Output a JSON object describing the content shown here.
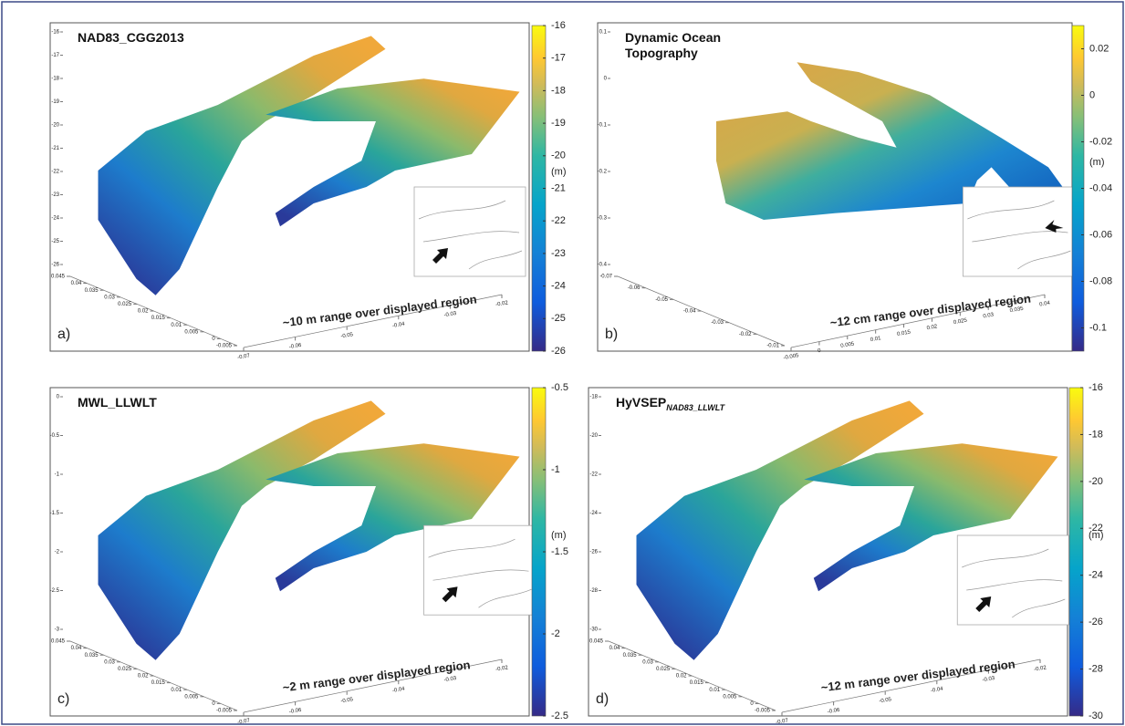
{
  "chart_data": [
    {
      "type": "surface",
      "title": "NAD83_CGG2013",
      "panel": "a)",
      "annotation": "~10 m range over displayed region",
      "colorbar_label": "(m)",
      "clim": [
        -26,
        -16
      ],
      "cticks": [
        -16,
        -17,
        -18,
        -19,
        -20,
        -21,
        -22,
        -23,
        -24,
        -25,
        -26
      ],
      "zticks": [
        -16,
        -17,
        -18,
        -19,
        -20,
        -21,
        -22,
        -23,
        -24,
        -25,
        -26
      ],
      "yticks": [
        0.045,
        0.04,
        0.035,
        0.03,
        0.025,
        0.02,
        0.015,
        0.01,
        0.005,
        0,
        -0.005
      ],
      "xticks": [
        -0.07,
        -0.06,
        -0.05,
        -0.04,
        -0.03,
        -0.02
      ]
    },
    {
      "type": "surface",
      "title": "Dynamic Ocean Topography",
      "panel": "b)",
      "annotation": "~12 cm range over displayed region",
      "colorbar_label": "(m)",
      "clim": [
        -0.11,
        0.03
      ],
      "cticks": [
        0.02,
        0,
        -0.02,
        -0.04,
        -0.06,
        -0.08,
        -0.1
      ],
      "zticks": [
        0.1,
        0,
        -0.1,
        -0.2,
        -0.3,
        -0.4
      ],
      "yticks": [
        -0.07,
        -0.06,
        -0.05,
        -0.04,
        -0.03,
        -0.02,
        -0.01
      ],
      "xticks": [
        -0.005,
        0,
        0.005,
        0.01,
        0.015,
        0.02,
        0.025,
        0.03,
        0.035,
        0.04
      ]
    },
    {
      "type": "surface",
      "title": "MWL_LLWLT",
      "panel": "c)",
      "annotation": "~2 m range over displayed region",
      "colorbar_label": "(m)",
      "clim": [
        -2.5,
        -0.5
      ],
      "cticks": [
        -0.5,
        -1,
        -1.5,
        -2,
        -2.5
      ],
      "zticks": [
        0,
        -0.5,
        -1,
        -1.5,
        -2,
        -2.5,
        -3
      ],
      "yticks": [
        0.045,
        0.04,
        0.035,
        0.03,
        0.025,
        0.02,
        0.015,
        0.01,
        0.005,
        0,
        -0.005
      ],
      "xticks": [
        -0.07,
        -0.06,
        -0.05,
        -0.04,
        -0.03,
        -0.02
      ]
    },
    {
      "type": "surface",
      "title": "HyVSEP",
      "title_subscript": "NAD83_LLWLT",
      "panel": "d)",
      "annotation": "~12 m range over displayed region",
      "colorbar_label": "(m)",
      "clim": [
        -30,
        -16
      ],
      "cticks": [
        -16,
        -18,
        -20,
        -22,
        -24,
        -26,
        -28,
        -30
      ],
      "zticks": [
        -18,
        -20,
        -22,
        -24,
        -26,
        -28,
        -30
      ],
      "yticks": [
        0.045,
        0.04,
        0.035,
        0.03,
        0.025,
        0.02,
        0.015,
        0.01,
        0.005,
        0,
        -0.005
      ],
      "xticks": [
        -0.07,
        -0.06,
        -0.05,
        -0.04,
        -0.03,
        -0.02
      ]
    }
  ]
}
